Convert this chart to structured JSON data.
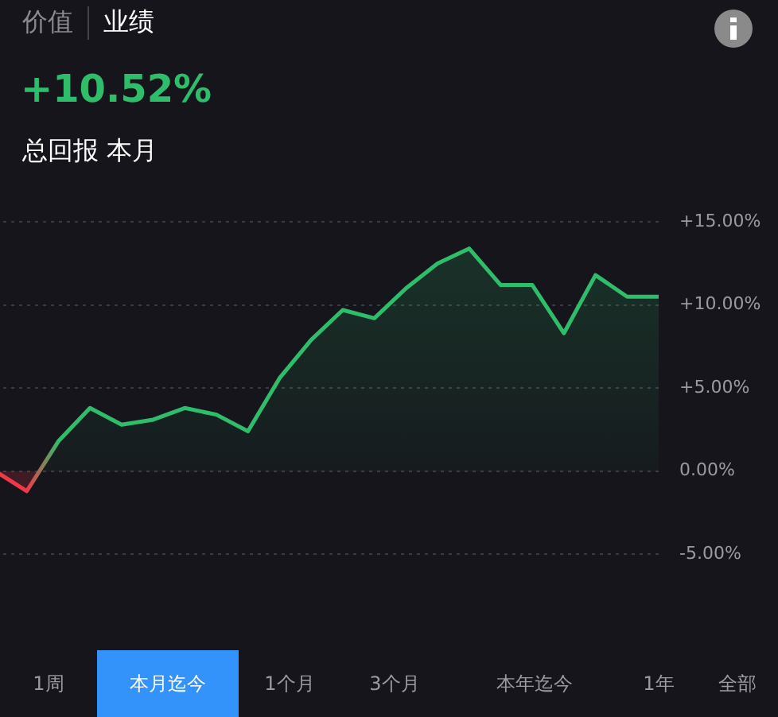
{
  "chart_data": {
    "type": "area",
    "title": "+10.52%",
    "subtitle": "总回报 本月",
    "annotations": [
      "价值",
      "业绩",
      "1周",
      "本月迄今",
      "1个月",
      "3个月",
      "本年迄今",
      "1年",
      "全部"
    ],
    "categories": [
      null,
      null,
      null,
      null,
      null,
      null,
      null,
      null,
      null,
      null,
      null,
      null,
      null,
      null,
      null,
      null,
      null,
      null,
      null,
      null,
      null,
      null
    ],
    "series": [
      {
        "color": "#2ebd6b",
        "values": [
          0,
          -1.2,
          1.8,
          3.8,
          2.8,
          3.1,
          3.8,
          3.4,
          2.4,
          5.6,
          7.9,
          9.7,
          9.2,
          11.0,
          12.5,
          13.4,
          11.2,
          11.2,
          8.3,
          11.8,
          10.5,
          10.5
        ],
        "colors": [
          "#f0384a",
          "#f0384a",
          "#2ebd6b",
          "#2ebd6b",
          "#2ebd6b",
          "#2ebd6b",
          "#2ebd6b",
          "#2ebd6b",
          "#2ebd6b",
          "#2ebd6b",
          "#2ebd6b",
          "#2ebd6b",
          "#2ebd6b",
          "#2ebd6b",
          "#2ebd6b",
          "#2ebd6b",
          "#2ebd6b",
          "#2ebd6b",
          "#2ebd6b",
          "#2ebd6b",
          "#2ebd6b",
          "#2ebd6b"
        ]
      }
    ],
    "ylim": [
      -5,
      15
    ],
    "yticks": [
      {
        "value": -5,
        "label": "-5.00%"
      },
      {
        "value": 0,
        "label": "0.00%"
      },
      {
        "value": 5,
        "label": "+5.00%"
      },
      {
        "value": 10,
        "label": "+10.00%"
      },
      {
        "value": 15,
        "label": "+15.00%"
      }
    ],
    "grid": "y",
    "legend": false,
    "marker": "none",
    "line_style": "solid"
  }
}
